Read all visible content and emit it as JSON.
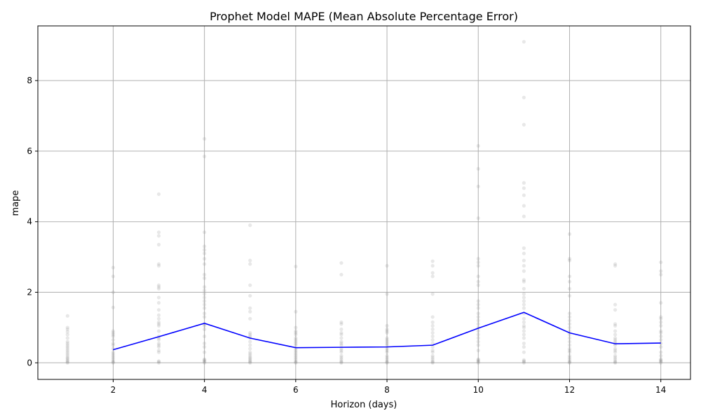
{
  "chart_data": {
    "type": "scatter",
    "title": "Prophet Model MAPE (Mean Absolute Percentage Error)",
    "xlabel": "Horizon (days)",
    "ylabel": "mape",
    "xlim": [
      0.35,
      14.65
    ],
    "ylim": [
      -0.47,
      9.55
    ],
    "x_ticks": [
      2,
      4,
      6,
      8,
      10,
      12,
      14
    ],
    "y_ticks": [
      0,
      2,
      4,
      6,
      8
    ],
    "grid": true,
    "legend": "none",
    "colors": {
      "points": "#808080",
      "line": "#0000ff",
      "grid": "#b0b0b0"
    },
    "series": [
      {
        "kind": "points",
        "points": [
          {
            "x": 1,
            "y": [
              0.0,
              0.02,
              0.05,
              0.08,
              0.12,
              0.15,
              0.2,
              0.25,
              0.3,
              0.35,
              0.4,
              0.45,
              0.5,
              0.55,
              0.6,
              0.7,
              0.8,
              0.88,
              0.95,
              1.0,
              1.33
            ]
          },
          {
            "x": 2,
            "y": [
              0.0,
              0.02,
              0.05,
              0.1,
              0.15,
              0.2,
              0.25,
              0.3,
              0.4,
              0.5,
              0.55,
              0.65,
              0.75,
              0.8,
              0.85,
              0.9,
              1.57,
              2.0,
              2.45,
              2.7
            ]
          },
          {
            "x": 3,
            "y": [
              0.0,
              0.03,
              0.05,
              0.3,
              0.35,
              0.45,
              0.5,
              0.55,
              0.65,
              0.7,
              0.75,
              0.9,
              1.05,
              1.1,
              1.15,
              1.25,
              1.35,
              1.5,
              1.7,
              1.85,
              2.1,
              2.15,
              2.2,
              2.75,
              2.8,
              3.35,
              3.6,
              3.7,
              4.78
            ]
          },
          {
            "x": 4,
            "y": [
              0.0,
              0.03,
              0.05,
              0.08,
              0.1,
              0.3,
              0.45,
              0.55,
              0.75,
              0.95,
              1.05,
              1.1,
              1.3,
              1.4,
              1.55,
              1.65,
              1.75,
              1.85,
              1.95,
              2.05,
              2.15,
              2.4,
              2.5,
              2.8,
              2.95,
              3.1,
              3.2,
              3.3,
              3.7,
              5.85,
              6.35
            ]
          },
          {
            "x": 5,
            "y": [
              0.0,
              0.02,
              0.05,
              0.08,
              0.12,
              0.15,
              0.2,
              0.25,
              0.3,
              0.4,
              0.5,
              0.6,
              0.7,
              0.75,
              0.8,
              0.85,
              1.25,
              1.45,
              1.55,
              1.9,
              2.2,
              2.8,
              2.9,
              3.9
            ]
          },
          {
            "x": 6,
            "y": [
              0.0,
              0.02,
              0.05,
              0.1,
              0.15,
              0.2,
              0.25,
              0.3,
              0.35,
              0.4,
              0.5,
              0.55,
              0.6,
              0.65,
              0.7,
              0.8,
              0.85,
              0.9,
              1.0,
              1.45,
              2.73
            ]
          },
          {
            "x": 7,
            "y": [
              0.0,
              0.02,
              0.05,
              0.1,
              0.15,
              0.2,
              0.3,
              0.35,
              0.4,
              0.5,
              0.55,
              0.6,
              0.7,
              0.8,
              0.85,
              0.95,
              1.1,
              1.15,
              2.5,
              2.83
            ]
          },
          {
            "x": 8,
            "y": [
              0.0,
              0.02,
              0.05,
              0.1,
              0.15,
              0.2,
              0.3,
              0.35,
              0.4,
              0.5,
              0.55,
              0.6,
              0.65,
              0.7,
              0.85,
              0.9,
              0.95,
              1.05,
              1.95,
              2.75
            ]
          },
          {
            "x": 9,
            "y": [
              0.0,
              0.02,
              0.05,
              0.1,
              0.15,
              0.2,
              0.3,
              0.35,
              0.45,
              0.55,
              0.65,
              0.75,
              0.85,
              0.95,
              1.05,
              1.15,
              1.3,
              1.95,
              2.45,
              2.55,
              2.75,
              2.88
            ]
          },
          {
            "x": 10,
            "y": [
              0.0,
              0.03,
              0.05,
              0.08,
              0.1,
              0.35,
              0.5,
              0.6,
              0.7,
              0.8,
              0.9,
              1.0,
              1.1,
              1.2,
              1.3,
              1.4,
              1.55,
              1.65,
              1.75,
              2.2,
              2.3,
              2.45,
              2.75,
              2.85,
              2.95,
              4.1,
              5.0,
              5.5,
              6.15
            ]
          },
          {
            "x": 11,
            "y": [
              0.0,
              0.03,
              0.05,
              0.08,
              0.3,
              0.45,
              0.55,
              0.7,
              0.8,
              0.9,
              1.0,
              1.05,
              1.15,
              1.25,
              1.4,
              1.55,
              1.65,
              1.75,
              1.85,
              1.95,
              2.1,
              2.3,
              2.35,
              2.6,
              2.75,
              2.9,
              3.1,
              3.25,
              4.15,
              4.45,
              4.75,
              4.95,
              5.1,
              6.75,
              7.52,
              9.1
            ]
          },
          {
            "x": 12,
            "y": [
              0.0,
              0.02,
              0.05,
              0.1,
              0.15,
              0.2,
              0.3,
              0.35,
              0.4,
              0.5,
              0.6,
              0.7,
              0.8,
              0.9,
              1.0,
              1.1,
              1.2,
              1.3,
              1.4,
              1.9,
              2.1,
              2.3,
              2.45,
              2.9,
              2.95,
              3.65
            ]
          },
          {
            "x": 13,
            "y": [
              0.0,
              0.02,
              0.05,
              0.1,
              0.15,
              0.2,
              0.3,
              0.35,
              0.4,
              0.5,
              0.55,
              0.6,
              0.65,
              0.7,
              0.8,
              0.9,
              1.05,
              1.1,
              1.5,
              1.65,
              2.75,
              2.8
            ]
          },
          {
            "x": 14,
            "y": [
              0.0,
              0.03,
              0.05,
              0.08,
              0.1,
              0.2,
              0.3,
              0.45,
              0.55,
              0.65,
              0.75,
              0.85,
              0.9,
              1.05,
              1.15,
              1.25,
              1.3,
              1.7,
              2.5,
              2.6,
              2.85
            ]
          }
        ]
      },
      {
        "kind": "line",
        "x": [
          2,
          3,
          4,
          5,
          6,
          7,
          8,
          9,
          10,
          11,
          12,
          13,
          14
        ],
        "y": [
          0.37,
          0.74,
          1.12,
          0.7,
          0.43,
          0.44,
          0.45,
          0.5,
          0.98,
          1.43,
          0.85,
          0.54,
          0.56
        ]
      }
    ]
  }
}
